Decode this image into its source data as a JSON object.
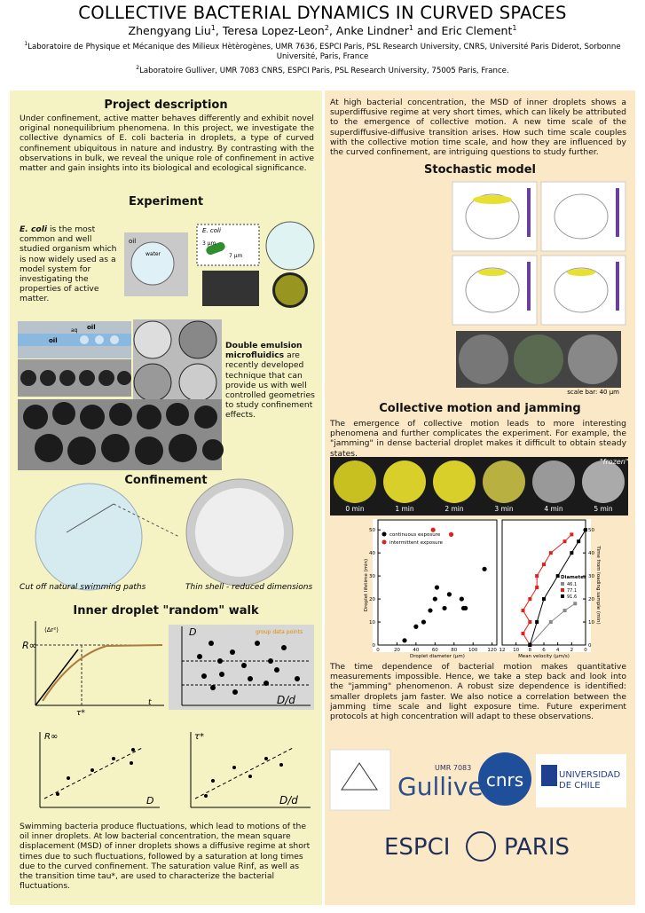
{
  "header": {
    "title": "COLLECTIVE BACTERIAL DYNAMICS IN CURVED SPACES",
    "authors": [
      {
        "name": "Zhengyang Liu",
        "sup": "1",
        "sep": ", "
      },
      {
        "name": "Teresa Lopez-Leon",
        "sup": "2",
        "sep": ", "
      },
      {
        "name": "Anke Lindner",
        "sup": "1",
        "sep": " and "
      },
      {
        "name": "Eric Clement",
        "sup": "1",
        "sep": ""
      }
    ],
    "affiliations": [
      {
        "sup": "1",
        "text": "Laboratoire de Physique et Mécanique des Milieux Hètèrogènes, UMR 7636, ESPCI Paris, PSL Research University, CNRS, Université Paris Diderot, Sorbonne Université, Paris, France"
      },
      {
        "sup": "2",
        "text": "Laboratoire Gulliver, UMR 7083 CNRS, ESPCI Paris, PSL Research University, 75005 Paris, France."
      }
    ]
  },
  "project": {
    "heading": "Project description",
    "text": "Under confinement, active matter behaves differently and exhibit novel original nonequilibrium phenomena. In this project, we investigate the collective dynamics of E. coli bacteria in droplets, a type of curved confinement ubiquitous in nature and industry. By contrasting with the observations in bulk, we reveal the unique role of confinement in active matter and gain insights into its biological and ecological significance."
  },
  "experiment": {
    "heading": "Experiment",
    "ecoli_bold": "E. coli",
    "ecoli_text": " is the most common and well studied organism which is now widely used as a model system for investigating the properties of active matter.",
    "diagram_labels": [
      "oil",
      "water",
      "E. coli",
      "3 μm",
      "7 μm"
    ],
    "chip_labels": [
      "oil",
      "aq",
      "oil"
    ],
    "emulsion_bold": "Double emulsion microfluidics",
    "emulsion_text": " are recently developed technique that can provide us with well controlled geometries to study confinement effects."
  },
  "confinement": {
    "heading": "Confinement",
    "captions": [
      "Cut off natural swimming paths",
      "Thin shell - reduced dimensions"
    ]
  },
  "walk": {
    "heading": "Inner droplet \"random\" walk",
    "labels": {
      "rinf": "R∞",
      "msd": "⟨Δr²⟩",
      "tau": "τ*",
      "t": "t",
      "D": "D",
      "Dd": "D/d",
      "group": "group data points"
    },
    "text": "Swimming bacteria produce fluctuations, which lead to motions of the oil inner droplets. At low bacterial concentration, the mean square displacement (MSD) of inner droplets shows a diffusive regime at short times due to such fluctuations, followed by a saturation at long times due to the curved confinement. The saturation value Rinf, as well as the transition time tau*, are used to characterize the bacterial fluctuations."
  },
  "intro": {
    "text": "At high bacterial concentration, the MSD of inner droplets shows a superdiffusive regime at very short times, which can likely be attributed to the emergence of collective motion. A new time scale of the superdiffusive-diffusive transition arises. How such time scale couples with the collective motion time scale, and how they are influenced by the curved confinement, are intriguing questions to study further."
  },
  "stochastic": {
    "heading": "Stochastic model",
    "scale": "scale bar: 40 μm"
  },
  "collective": {
    "heading": "Collective motion and jamming",
    "text1": "The emergence of collective motion leads to more interesting phenomena and further complicates the experiment. For example, the \"jamming\" in dense bacterial droplet makes it difficult to obtain steady states.",
    "frozen": "\"frozen\"",
    "times": [
      "0 min",
      "1 min",
      "2 min",
      "3 min",
      "4 min",
      "5 min"
    ],
    "plot": {
      "ylabel": "Droplet lifetime (min)",
      "xlabel": "Droplet diameter (μm)",
      "x2label": "Mean velocity (μm/s)",
      "y2label": "Time from loading sample (min)",
      "ylim": [
        0,
        52
      ],
      "yticks": [
        0,
        10,
        20,
        30,
        40,
        50
      ],
      "xlim": [
        0,
        125
      ],
      "xticks": [
        0,
        20,
        40,
        60,
        80,
        100,
        120
      ],
      "x2lim": [
        12,
        0
      ],
      "x2ticks": [
        12,
        10,
        8,
        6,
        4,
        2,
        0
      ],
      "legend1": [
        {
          "name": "continuous exposure",
          "color": "#000000"
        },
        {
          "name": "intermittent exposure",
          "color": "#e0201a"
        }
      ],
      "scatter": [
        {
          "color": "#000000",
          "x": [
            28,
            40,
            48,
            55,
            60,
            62,
            70,
            75,
            88,
            90,
            92,
            112
          ],
          "y": [
            2,
            8,
            10,
            15,
            20,
            25,
            16,
            22,
            20,
            16,
            16,
            33
          ]
        },
        {
          "color": "#e0201a",
          "x": [
            58,
            77
          ],
          "y": [
            50,
            48
          ]
        }
      ],
      "legend_title": "Diameter",
      "series": [
        {
          "name": "46.1",
          "color": "#888888",
          "x": [
            8,
            5,
            3,
            1.5
          ],
          "y": [
            0,
            10,
            15,
            18
          ]
        },
        {
          "name": "77.1",
          "color": "#e0201a",
          "x": [
            8,
            9,
            8,
            9,
            8,
            7,
            7,
            6,
            5,
            3,
            2
          ],
          "y": [
            0,
            5,
            10,
            15,
            20,
            25,
            30,
            35,
            40,
            45,
            48
          ]
        },
        {
          "name": "91.6",
          "color": "#000000",
          "x": [
            8,
            7,
            6,
            4,
            2,
            1,
            0
          ],
          "y": [
            0,
            10,
            20,
            30,
            40,
            45,
            50
          ]
        }
      ]
    },
    "text2": "The time dependence of bacterial motion makes quantitative measurements impossible. Hence, we take a step back and look into the \"jamming\" phenomenon. A robust size dependence is identified: smaller droplets jam faster. We also notice a correlation between the jamming time scale and light exposure time. Future experiment protocols at high concentration will adapt to these observations."
  },
  "logos": {
    "umr": "UMR 7083",
    "gulliver": "Gulliver",
    "cnrs": "cnrs",
    "chile": "UNIVERSIDAD DE CHILE",
    "espci": "ESPCI",
    "paris": "PARIS"
  }
}
